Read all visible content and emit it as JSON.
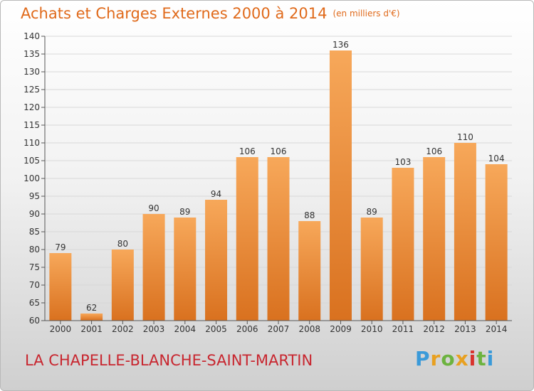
{
  "title": "Achats et Charges Externes 2000 à 2014",
  "unit_note": "(en milliers d'€)",
  "location": "LA CHAPELLE-BLANCHE-SAINT-MARTIN",
  "brand": {
    "letters": [
      "P",
      "r",
      "o",
      "x",
      "i",
      "t",
      "i"
    ],
    "colors": [
      "#3a9ad9",
      "#e8a020",
      "#6cb33f",
      "#e8a020",
      "#d9332d",
      "#6cb33f",
      "#3a9ad9"
    ]
  },
  "colors": {
    "bar_light": "#f7a85a",
    "bar_dark": "#d9711f",
    "grid": "#d8d8d8"
  },
  "chart_data": {
    "type": "bar",
    "categories": [
      "2000",
      "2001",
      "2002",
      "2003",
      "2004",
      "2005",
      "2006",
      "2007",
      "2008",
      "2009",
      "2010",
      "2011",
      "2012",
      "2013",
      "2014"
    ],
    "values": [
      79,
      62,
      80,
      90,
      89,
      94,
      106,
      106,
      88,
      136,
      89,
      103,
      106,
      110,
      104
    ],
    "ylim": [
      60,
      140
    ],
    "yticks": [
      60,
      65,
      70,
      75,
      80,
      85,
      90,
      95,
      100,
      105,
      110,
      115,
      120,
      125,
      130,
      135,
      140
    ],
    "grid": true
  }
}
